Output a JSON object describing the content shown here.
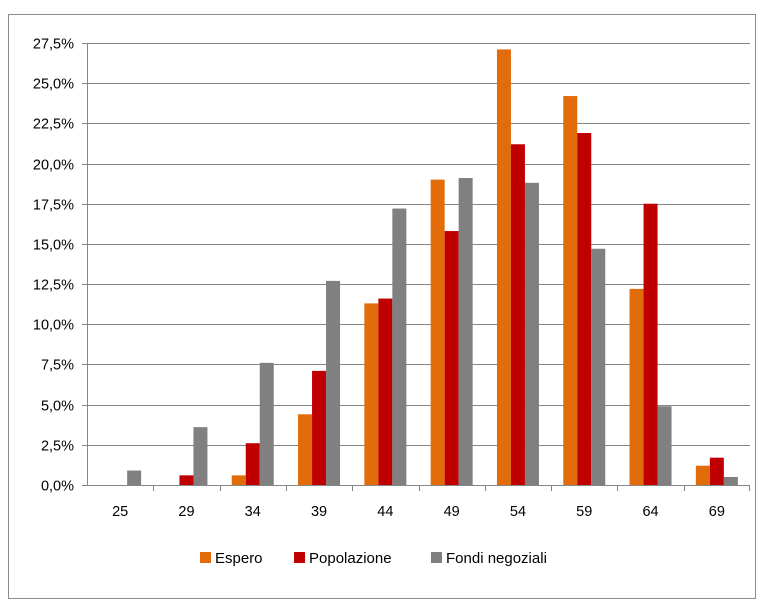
{
  "chart_data": {
    "type": "bar",
    "categories": [
      "25",
      "29",
      "34",
      "39",
      "44",
      "49",
      "54",
      "59",
      "64",
      "69"
    ],
    "series": [
      {
        "name": "Espero",
        "color": "#E36C0A",
        "values": [
          0.0,
          0.0,
          0.6,
          4.4,
          11.3,
          19.0,
          27.1,
          24.2,
          12.2,
          1.2
        ]
      },
      {
        "name": "Popolazione",
        "color": "#C00000",
        "values": [
          0.0,
          0.6,
          2.6,
          7.1,
          11.6,
          15.8,
          21.2,
          21.9,
          17.5,
          1.7
        ]
      },
      {
        "name": "Fondi negoziali",
        "color": "#808080",
        "values": [
          0.9,
          3.6,
          7.6,
          12.7,
          17.2,
          19.1,
          18.8,
          14.7,
          4.9,
          0.5
        ]
      }
    ],
    "y_ticks": [
      "0,0%",
      "2,5%",
      "5,0%",
      "7,5%",
      "10,0%",
      "12,5%",
      "15,0%",
      "17,5%",
      "20,0%",
      "22,5%",
      "25,0%",
      "27,5%"
    ],
    "ylim": [
      0,
      27.5
    ],
    "grid": true,
    "legend_position": "bottom",
    "title": "",
    "xlabel": "",
    "ylabel": ""
  }
}
